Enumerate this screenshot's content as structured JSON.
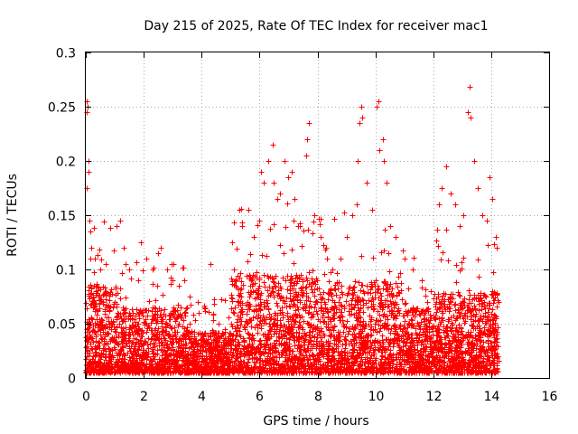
{
  "chart_data": {
    "type": "scatter",
    "title": "Day 215 of 2025, Rate Of TEC Index for receiver mac1",
    "xlabel": "GPS time / hours",
    "ylabel": "ROTI / TECUs",
    "xlim": [
      0,
      16
    ],
    "ylim": [
      0,
      0.3
    ],
    "x_ticks": [
      0,
      2,
      4,
      6,
      8,
      10,
      12,
      14,
      16
    ],
    "x_tick_labels": [
      "0",
      "2",
      "4",
      "6",
      "8",
      "10",
      "12",
      "14",
      "16"
    ],
    "y_ticks": [
      0,
      0.05,
      0.1,
      0.15,
      0.2,
      0.25,
      0.3
    ],
    "y_tick_labels": [
      "0",
      "0.05",
      "0.1",
      "0.15",
      "0.2",
      "0.25",
      "0.3"
    ],
    "grid": true,
    "marker": "+",
    "color": "#ff0000",
    "series": [
      {
        "name": "ROTI",
        "points": [
          [
            0.03,
            0.255
          ],
          [
            0.05,
            0.25
          ],
          [
            0.04,
            0.245
          ],
          [
            0.02,
            0.175
          ],
          [
            0.08,
            0.2
          ],
          [
            0.1,
            0.19
          ],
          [
            0.12,
            0.145
          ],
          [
            0.15,
            0.135
          ],
          [
            0.2,
            0.12
          ],
          [
            0.3,
            0.11
          ],
          [
            0.5,
            0.1
          ],
          [
            0.7,
            0.105
          ],
          [
            0.85,
            0.138
          ],
          [
            1.05,
            0.14
          ],
          [
            1.2,
            0.145
          ],
          [
            1.3,
            0.12
          ],
          [
            1.5,
            0.1
          ],
          [
            1.8,
            0.09
          ],
          [
            1.9,
            0.125
          ],
          [
            2.1,
            0.11
          ],
          [
            2.3,
            0.1
          ],
          [
            2.5,
            0.115
          ],
          [
            2.6,
            0.12
          ],
          [
            2.8,
            0.1
          ],
          [
            3.0,
            0.09
          ],
          [
            3.2,
            0.085
          ],
          [
            3.4,
            0.09
          ],
          [
            3.6,
            0.075
          ],
          [
            3.9,
            0.06
          ],
          [
            4.1,
            0.065
          ],
          [
            4.3,
            0.105
          ],
          [
            4.6,
            0.05
          ],
          [
            4.8,
            0.045
          ],
          [
            5.1,
            0.1
          ],
          [
            5.3,
            0.155
          ],
          [
            5.4,
            0.14
          ],
          [
            5.6,
            0.155
          ],
          [
            5.8,
            0.13
          ],
          [
            6.0,
            0.145
          ],
          [
            6.05,
            0.19
          ],
          [
            6.15,
            0.18
          ],
          [
            6.3,
            0.2
          ],
          [
            6.45,
            0.215
          ],
          [
            6.5,
            0.18
          ],
          [
            6.6,
            0.165
          ],
          [
            6.7,
            0.17
          ],
          [
            6.85,
            0.2
          ],
          [
            7.0,
            0.185
          ],
          [
            7.1,
            0.19
          ],
          [
            7.2,
            0.165
          ],
          [
            7.4,
            0.14
          ],
          [
            7.6,
            0.205
          ],
          [
            7.7,
            0.235
          ],
          [
            7.65,
            0.22
          ],
          [
            7.9,
            0.15
          ],
          [
            8.1,
            0.13
          ],
          [
            8.3,
            0.12
          ],
          [
            8.5,
            0.1
          ],
          [
            8.8,
            0.11
          ],
          [
            9.0,
            0.13
          ],
          [
            9.2,
            0.15
          ],
          [
            9.35,
            0.16
          ],
          [
            9.4,
            0.2
          ],
          [
            9.45,
            0.235
          ],
          [
            9.5,
            0.25
          ],
          [
            9.55,
            0.24
          ],
          [
            9.7,
            0.18
          ],
          [
            9.9,
            0.155
          ],
          [
            10.05,
            0.25
          ],
          [
            10.1,
            0.255
          ],
          [
            10.15,
            0.21
          ],
          [
            10.25,
            0.22
          ],
          [
            10.3,
            0.2
          ],
          [
            10.4,
            0.18
          ],
          [
            10.5,
            0.14
          ],
          [
            10.7,
            0.13
          ],
          [
            11.0,
            0.11
          ],
          [
            11.3,
            0.1
          ],
          [
            11.6,
            0.09
          ],
          [
            11.9,
            0.08
          ],
          [
            12.2,
            0.16
          ],
          [
            12.3,
            0.175
          ],
          [
            12.45,
            0.195
          ],
          [
            12.6,
            0.17
          ],
          [
            12.75,
            0.16
          ],
          [
            12.9,
            0.14
          ],
          [
            13.05,
            0.15
          ],
          [
            13.2,
            0.245
          ],
          [
            13.25,
            0.268
          ],
          [
            13.28,
            0.24
          ],
          [
            13.4,
            0.2
          ],
          [
            13.55,
            0.175
          ],
          [
            13.7,
            0.15
          ],
          [
            13.85,
            0.145
          ],
          [
            13.95,
            0.185
          ],
          [
            14.05,
            0.165
          ],
          [
            14.15,
            0.13
          ],
          [
            14.2,
            0.12
          ]
        ]
      }
    ]
  }
}
